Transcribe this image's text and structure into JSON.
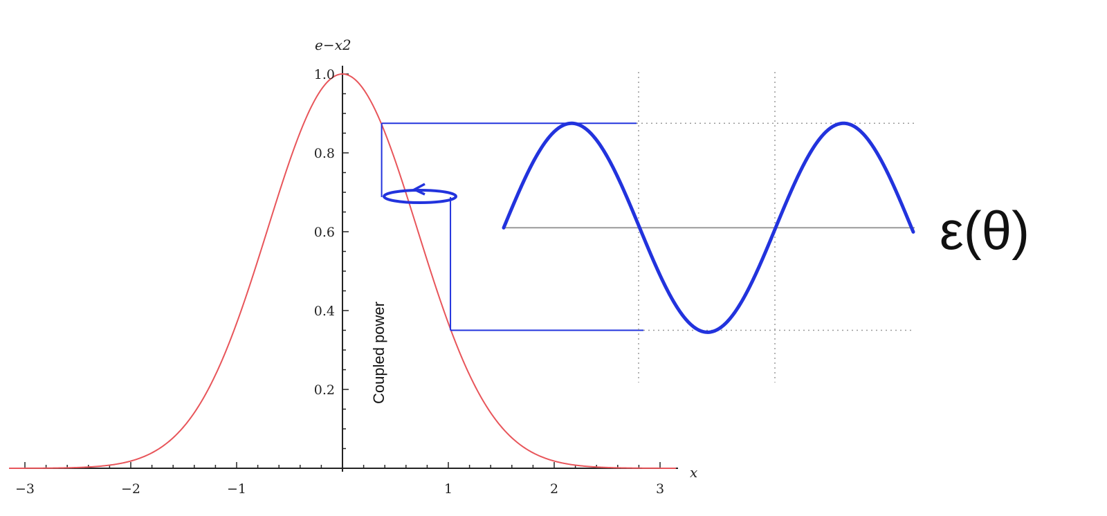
{
  "chart_data": {
    "type": "line",
    "function_label": "e−x2",
    "xlabel": "x",
    "x_ticks": [
      "−3",
      "−2",
      "−1",
      "1",
      "2",
      "3"
    ],
    "y_ticks": [
      "0.2",
      "0.4",
      "0.6",
      "0.8",
      "1.0"
    ],
    "xlim": [
      -3,
      3
    ],
    "ylim": [
      0,
      1
    ],
    "gaussian": {
      "color": "#e8555a",
      "formula": "exp(-x^2)"
    },
    "vertical_annotation": "Coupled power",
    "sine_label": "ε(θ)",
    "sine_color": "#2233dd",
    "sine_axis_color": "#999999",
    "guide_color": "#2233dd",
    "dotted_color": "#999999",
    "levels": {
      "upper_power": 0.875,
      "lower_power": 0.35,
      "sine_center": 0.61,
      "gaussian_x_upper": 0.37,
      "gaussian_x_lower": 1.02
    }
  }
}
